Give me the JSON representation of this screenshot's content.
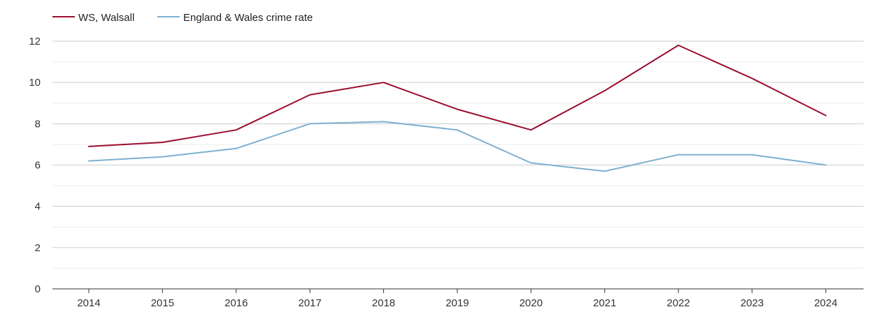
{
  "chart_data": {
    "type": "line",
    "title": "",
    "xlabel": "",
    "ylabel": "",
    "categories": [
      "2014",
      "2015",
      "2016",
      "2017",
      "2018",
      "2019",
      "2020",
      "2021",
      "2022",
      "2023",
      "2024"
    ],
    "series": [
      {
        "name": "WS, Walsall",
        "color": "#9b0d2e",
        "values": [
          6.9,
          7.1,
          7.7,
          9.4,
          10.0,
          8.7,
          7.7,
          9.6,
          11.8,
          10.2,
          8.4
        ]
      },
      {
        "name": "England & Wales crime rate",
        "color": "#7eb0d0",
        "values": [
          6.2,
          6.4,
          6.8,
          8.0,
          8.1,
          7.7,
          6.1,
          5.7,
          6.5,
          6.5,
          6.0
        ]
      }
    ],
    "ylim": [
      0,
      12
    ],
    "yticks": [
      0,
      2,
      4,
      6,
      8,
      10,
      12
    ],
    "grid": true,
    "legend_position": "top-left"
  }
}
